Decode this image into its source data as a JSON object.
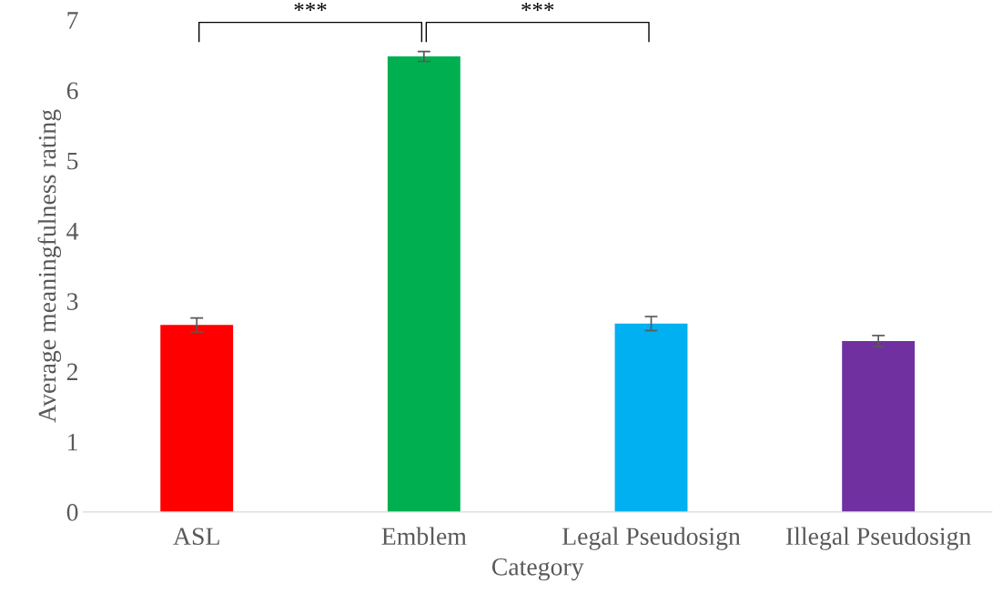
{
  "chart_data": {
    "type": "bar",
    "xlabel": "Category",
    "ylabel": "Average meaningfulness rating",
    "categories": [
      "ASL",
      "Emblem",
      "Legal Pseudosign",
      "Illegal Pseudosign"
    ],
    "values": [
      2.66,
      6.48,
      2.68,
      2.43
    ],
    "colors": [
      "#ff0000",
      "#00b050",
      "#00b0f0",
      "#7030a0"
    ],
    "errors": [
      0.1,
      0.07,
      0.1,
      0.08
    ],
    "ylim": [
      0,
      7
    ],
    "yticks": [
      0,
      1,
      2,
      3,
      4,
      5,
      6,
      7
    ],
    "grid": false,
    "legend": false,
    "annotations": [
      "***",
      "***"
    ]
  }
}
